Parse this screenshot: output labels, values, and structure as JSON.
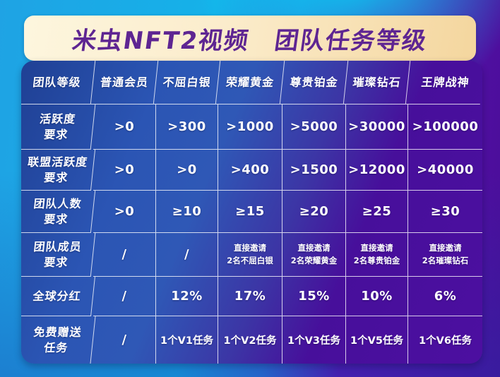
{
  "title": "米虫NFT2视频　团队任务等级",
  "table": {
    "corner_label": "团队等级",
    "columns": [
      "普通会员",
      "不屈白银",
      "荣耀黄金",
      "尊贵铂金",
      "璀璨钻石",
      "王牌战神"
    ],
    "rows": [
      {
        "label": "活跃度\n要求",
        "values": [
          ">0",
          ">300",
          ">1000",
          ">5000",
          ">30000",
          ">100000"
        ]
      },
      {
        "label": "联盟活跃度\n要求",
        "values": [
          ">0",
          ">0",
          ">400",
          ">1500",
          ">12000",
          ">40000"
        ]
      },
      {
        "label": "团队人数\n要求",
        "values": [
          ">0",
          "≥10",
          "≥15",
          "≥20",
          "≥25",
          "≥30"
        ]
      },
      {
        "label": "团队成员\n要求",
        "values": [
          "/",
          "/",
          "直接邀请\n2名不屈白银",
          "直接邀请\n2名荣耀黄金",
          "直接邀请\n2名尊贵铂金",
          "直接邀请\n2名璀璨钻石"
        ]
      },
      {
        "label": "全球分红",
        "values": [
          "/",
          "12%",
          "17%",
          "15%",
          "10%",
          "6%"
        ]
      },
      {
        "label": "免费赠送\n任务",
        "values": [
          "/",
          "1个V1任务",
          "1个V2任务",
          "1个V3任务",
          "1个V5任务",
          "1个V6任务"
        ]
      }
    ]
  },
  "colors": {
    "banner_gold": "#f4d69e",
    "title_purple": "#5e2592",
    "table_blue": "#2f58b6",
    "table_purple": "#4c0fa0",
    "background_cyan": "#15b2e9",
    "background_purple": "#4a0d98",
    "grid_line": "#ffffff"
  }
}
